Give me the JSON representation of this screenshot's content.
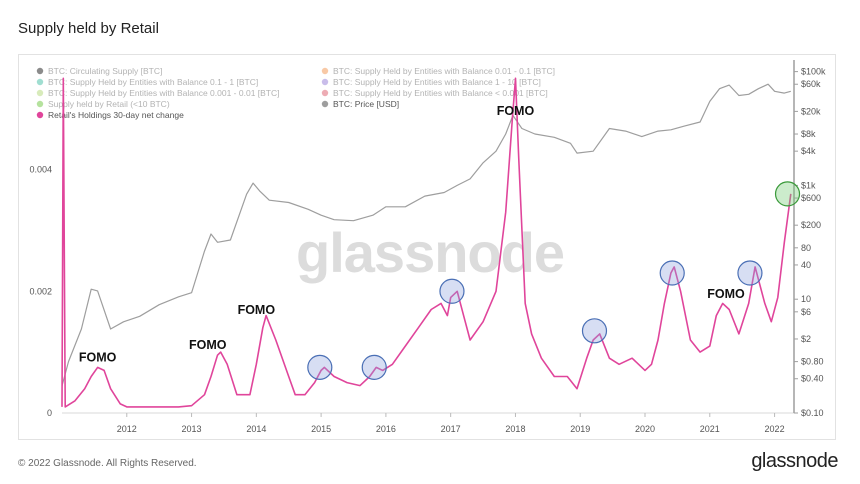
{
  "title": "Supply held by Retail",
  "footer": {
    "copyright": "© 2022 Glassnode. All Rights Reserved.",
    "logo": "glassnode"
  },
  "watermark": "glassnode",
  "chart_data": {
    "type": "line",
    "title": "Supply held by Retail",
    "legend_position": "top-left",
    "legend": [
      {
        "label": "BTC: Circulating Supply [BTC]",
        "color": "#000000",
        "dimmed": true
      },
      {
        "label": "BTC: Supply Held by Entities with Balance 0.01 - 0.1 [BTC]",
        "color": "#f08a3c",
        "dimmed": true
      },
      {
        "label": "BTC: Supply Held by Entities with Balance 0.1 - 1 [BTC]",
        "color": "#2fb89a",
        "dimmed": true
      },
      {
        "label": "BTC: Supply Held by Entities with Balance 1 - 10 [BTC]",
        "color": "#8a6fd1",
        "dimmed": true
      },
      {
        "label": "BTC: Supply Held by Entities with Balance 0.001 - 0.01 [BTC]",
        "color": "#a9d36a",
        "dimmed": true
      },
      {
        "label": "BTC: Supply Held by Entities with Balance < 0.001 [BTC]",
        "color": "#d94a5a",
        "dimmed": true
      },
      {
        "label": "Supply held by Retail (<10 BTC)",
        "color": "#5cbf2a",
        "dimmed": true
      },
      {
        "label": "BTC: Price [USD]",
        "color": "#9e9e9e",
        "dimmed": false
      },
      {
        "label": "Retail's Holdings 30-day net change",
        "color": "#e0459b",
        "dimmed": false
      }
    ],
    "x_ticks": [
      "2012",
      "2013",
      "2014",
      "2015",
      "2016",
      "2017",
      "2018",
      "2019",
      "2020",
      "2021",
      "2022"
    ],
    "xlim": [
      2011.0,
      2022.3
    ],
    "y_left": {
      "ticks": [
        "0",
        "0.002",
        "0.004"
      ],
      "values": [
        0,
        0.002,
        0.004
      ],
      "ylim": [
        0,
        0.0058
      ]
    },
    "y_right": {
      "scale": "log",
      "ticks": [
        "$100k",
        "$60k",
        "$20k",
        "$8k",
        "$4k",
        "$1k",
        "$600",
        "$200",
        "80",
        "40",
        "10",
        "$6",
        "$2",
        "$0.80",
        "$0.40",
        "$0.10"
      ],
      "values": [
        100000,
        60000,
        20000,
        8000,
        4000,
        1000,
        600,
        200,
        80,
        40,
        10,
        6,
        2,
        0.8,
        0.4,
        0.1
      ]
    },
    "series": [
      {
        "name": "Retail's Holdings 30-day net change",
        "axis": "left",
        "color": "#e0459b",
        "x": [
          2011.0,
          2011.02,
          2011.05,
          2011.2,
          2011.35,
          2011.45,
          2011.55,
          2011.65,
          2011.75,
          2011.9,
          2012.0,
          2012.2,
          2012.5,
          2012.8,
          2013.0,
          2013.2,
          2013.3,
          2013.4,
          2013.45,
          2013.55,
          2013.7,
          2013.9,
          2014.0,
          2014.1,
          2014.15,
          2014.3,
          2014.5,
          2014.6,
          2014.75,
          2014.9,
          2015.0,
          2015.05,
          2015.2,
          2015.4,
          2015.6,
          2015.75,
          2015.85,
          2015.95,
          2016.1,
          2016.3,
          2016.5,
          2016.7,
          2016.85,
          2016.95,
          2017.0,
          2017.1,
          2017.2,
          2017.3,
          2017.5,
          2017.7,
          2017.85,
          2017.95,
          2018.0,
          2018.05,
          2018.15,
          2018.25,
          2018.4,
          2018.6,
          2018.8,
          2018.95,
          2019.1,
          2019.2,
          2019.3,
          2019.45,
          2019.6,
          2019.8,
          2020.0,
          2020.1,
          2020.2,
          2020.3,
          2020.4,
          2020.45,
          2020.55,
          2020.7,
          2020.85,
          2021.0,
          2021.1,
          2021.2,
          2021.3,
          2021.45,
          2021.6,
          2021.7,
          2021.85,
          2021.95,
          2022.05,
          2022.15,
          2022.25
        ],
        "y": [
          0.0001,
          0.0055,
          0.0001,
          0.0002,
          0.0004,
          0.0006,
          0.00075,
          0.0007,
          0.0004,
          0.00015,
          0.0001,
          0.0001,
          0.0001,
          0.0001,
          0.00012,
          0.0003,
          0.0006,
          0.00095,
          0.001,
          0.0008,
          0.0003,
          0.0003,
          0.0008,
          0.0014,
          0.0016,
          0.0012,
          0.0006,
          0.0003,
          0.0003,
          0.0005,
          0.0007,
          0.00075,
          0.0006,
          0.0005,
          0.00045,
          0.0006,
          0.00075,
          0.0007,
          0.0008,
          0.0011,
          0.0014,
          0.0017,
          0.0018,
          0.0016,
          0.0019,
          0.002,
          0.0016,
          0.0012,
          0.0015,
          0.002,
          0.0033,
          0.0048,
          0.0055,
          0.0042,
          0.0018,
          0.0013,
          0.0009,
          0.0006,
          0.0006,
          0.0004,
          0.0009,
          0.0012,
          0.0013,
          0.0009,
          0.0008,
          0.0009,
          0.0007,
          0.0008,
          0.0012,
          0.0018,
          0.0023,
          0.0024,
          0.002,
          0.0012,
          0.001,
          0.0011,
          0.0016,
          0.0018,
          0.0017,
          0.0013,
          0.0018,
          0.0024,
          0.0018,
          0.0015,
          0.0019,
          0.0028,
          0.0036
        ]
      },
      {
        "name": "BTC: Price [USD]",
        "axis": "right",
        "color": "#9e9e9e",
        "x": [
          2011.0,
          2011.1,
          2011.3,
          2011.45,
          2011.55,
          2011.75,
          2011.95,
          2012.2,
          2012.5,
          2012.8,
          2013.0,
          2013.2,
          2013.3,
          2013.4,
          2013.6,
          2013.85,
          2013.95,
          2014.05,
          2014.2,
          2014.5,
          2014.8,
          2015.0,
          2015.2,
          2015.5,
          2015.8,
          2016.0,
          2016.3,
          2016.6,
          2016.9,
          2017.1,
          2017.3,
          2017.5,
          2017.7,
          2017.85,
          2017.96,
          2018.1,
          2018.3,
          2018.6,
          2018.85,
          2018.95,
          2019.2,
          2019.45,
          2019.7,
          2019.95,
          2020.2,
          2020.4,
          2020.6,
          2020.85,
          2021.0,
          2021.15,
          2021.3,
          2021.45,
          2021.6,
          2021.75,
          2021.9,
          2022.0,
          2022.15,
          2022.25
        ],
        "y": [
          0.3,
          0.8,
          3,
          15,
          14,
          3,
          4,
          5,
          8,
          11,
          13,
          70,
          140,
          100,
          110,
          700,
          1100,
          800,
          550,
          500,
          380,
          300,
          250,
          240,
          300,
          420,
          420,
          650,
          750,
          1000,
          1300,
          2500,
          4000,
          8000,
          17000,
          10000,
          8000,
          7000,
          5500,
          3700,
          4000,
          10000,
          9000,
          7200,
          9000,
          9500,
          11000,
          13000,
          30000,
          50000,
          58000,
          38000,
          40000,
          50000,
          60000,
          45000,
          42000,
          45000
        ]
      }
    ],
    "annotations": [
      {
        "text": "FOMO",
        "x": 2011.55,
        "y": 0.00085
      },
      {
        "text": "FOMO",
        "x": 2013.25,
        "y": 0.00105
      },
      {
        "text": "FOMO",
        "x": 2014.0,
        "y": 0.00163
      },
      {
        "text": "FOMO",
        "x": 2018.0,
        "y": 0.0049
      },
      {
        "text": "FOMO",
        "x": 2021.25,
        "y": 0.00189
      }
    ],
    "circle_markers": [
      {
        "x": 2014.98,
        "y": 0.00075,
        "color": "#4a6fb5"
      },
      {
        "x": 2015.82,
        "y": 0.00075,
        "color": "#4a6fb5"
      },
      {
        "x": 2017.02,
        "y": 0.002,
        "color": "#4a6fb5"
      },
      {
        "x": 2019.22,
        "y": 0.00135,
        "color": "#4a6fb5"
      },
      {
        "x": 2020.42,
        "y": 0.0023,
        "color": "#4a6fb5"
      },
      {
        "x": 2021.62,
        "y": 0.0023,
        "color": "#4a6fb5"
      },
      {
        "x": 2022.2,
        "y": 0.0036,
        "color": "#3a9a3a"
      }
    ]
  }
}
